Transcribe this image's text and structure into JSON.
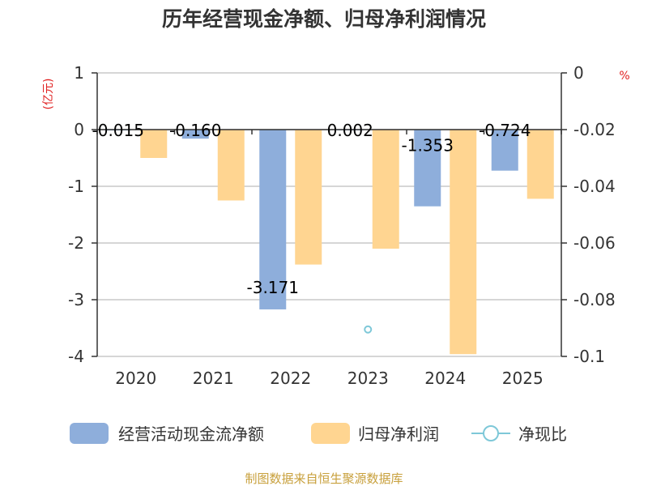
{
  "chart_data": {
    "type": "bar",
    "title": "历年经营现金净额、归母净利润情况",
    "categories": [
      "2020",
      "2021",
      "2022",
      "2023",
      "2024",
      "2025"
    ],
    "series": [
      {
        "name": "经营活动现金流净额",
        "axis": "left",
        "color": "#8eaedb",
        "values": [
          -0.015,
          -0.16,
          -3.171,
          0.002,
          -1.353,
          -0.724
        ],
        "data_labels": [
          "-0.015",
          "-0.160",
          "-3.171",
          "0.002",
          "-1.353",
          "-0.724"
        ]
      },
      {
        "name": "归母净利润",
        "axis": "left",
        "color": "#ffd591",
        "values": [
          -0.5,
          -1.25,
          -2.38,
          -2.1,
          -3.96,
          -1.22
        ]
      },
      {
        "name": "净现比",
        "axis": "right",
        "type": "scatter",
        "color": "#7ec8d8",
        "values": [
          null,
          null,
          null,
          -0.0905,
          null,
          null
        ]
      }
    ],
    "left_axis": {
      "unit": "(亿元)",
      "ylim": [
        -4,
        1
      ],
      "ticks": [
        "1",
        "0",
        "-1",
        "-2",
        "-3",
        "-4"
      ]
    },
    "right_axis": {
      "unit": "%",
      "ylim": [
        -0.1,
        0
      ],
      "ticks": [
        "0",
        "-0.02",
        "-0.04",
        "-0.06",
        "-0.08",
        "-0.1"
      ]
    },
    "grid": true,
    "legend_position": "bottom",
    "source": "制图数据来自恒生聚源数据库"
  }
}
